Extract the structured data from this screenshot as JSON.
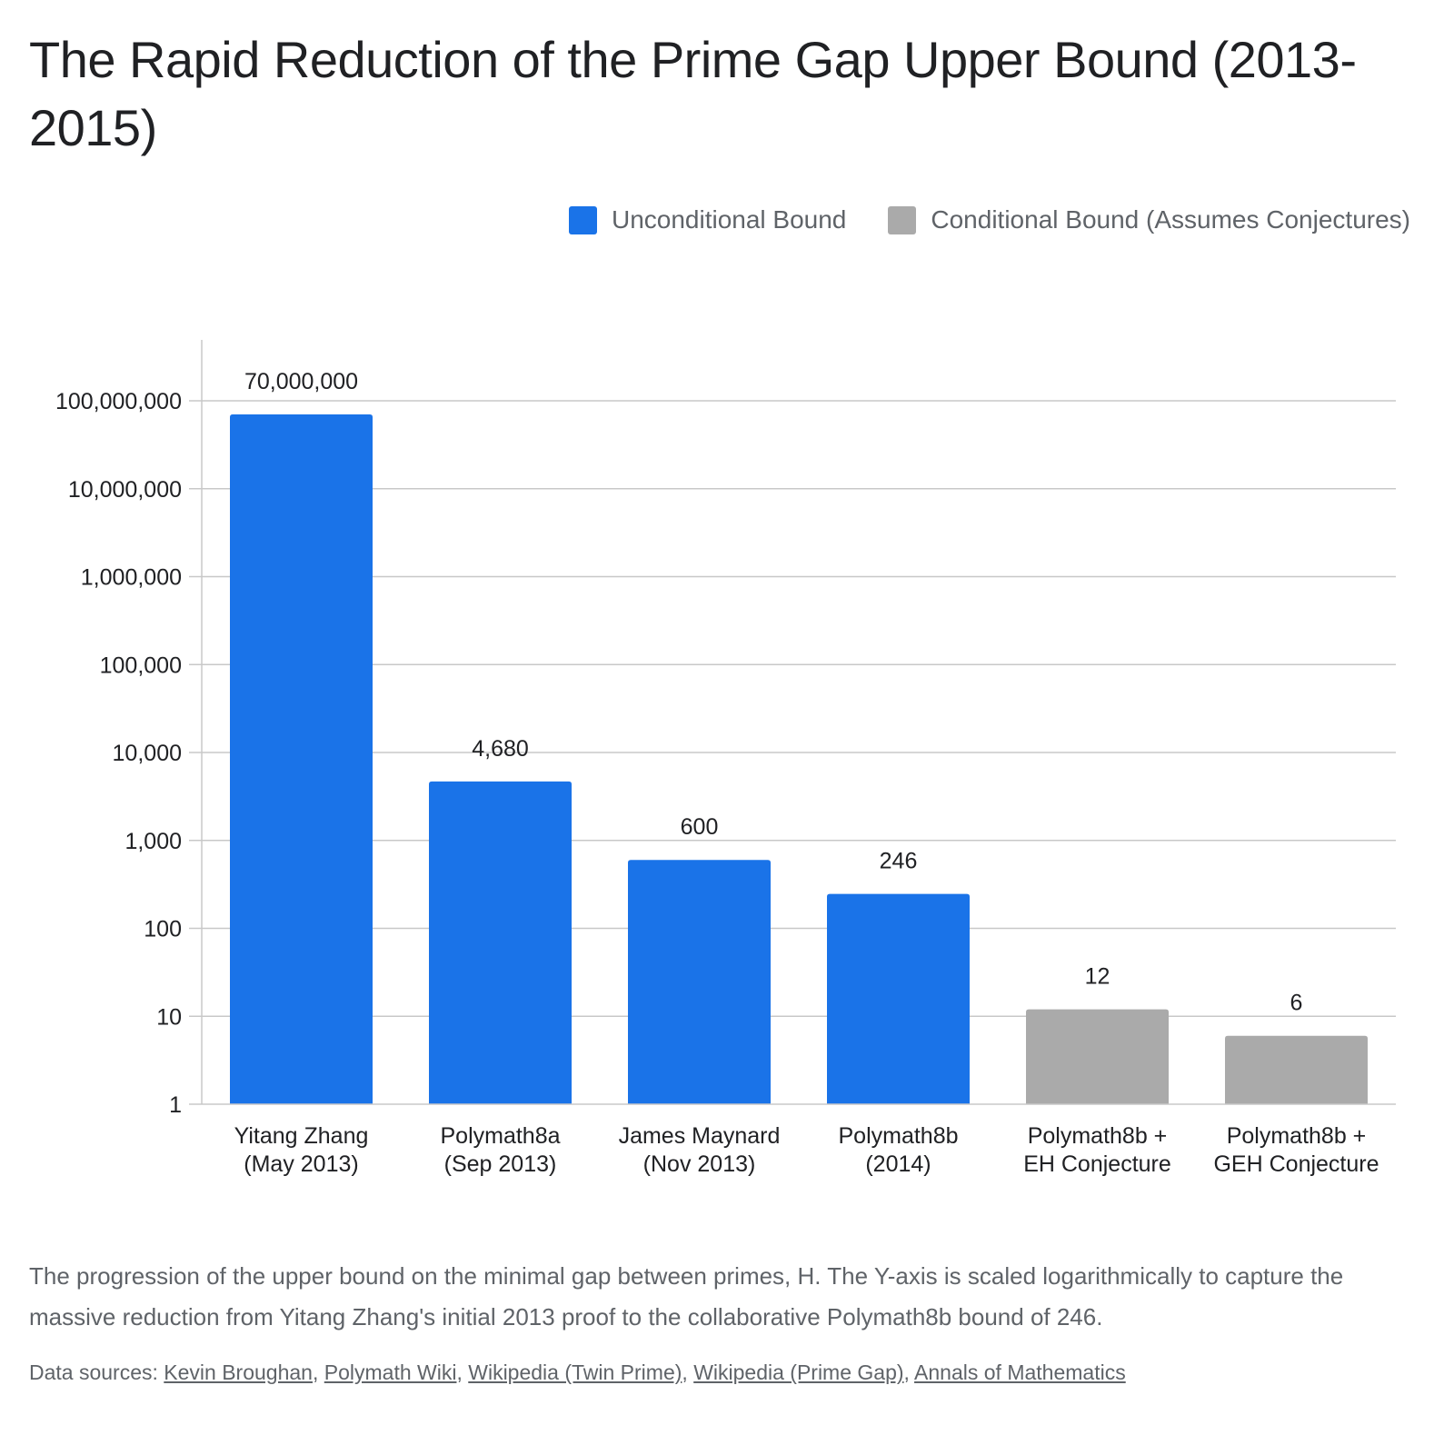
{
  "title": "The Rapid Reduction of the Prime Gap Upper Bound (2013-2015)",
  "legend": [
    {
      "label": "Unconditional Bound",
      "color": "#1a73e8"
    },
    {
      "label": "Conditional Bound (Assumes Conjectures)",
      "color": "#aaaaaa"
    }
  ],
  "chart_data": {
    "type": "bar",
    "title": "The Rapid Reduction of the Prime Gap Upper Bound (2013-2015)",
    "xlabel": "",
    "ylabel": "",
    "yscale": "log",
    "ylim": [
      1,
      100000000
    ],
    "grid": true,
    "legend_position": "top-right",
    "y_ticks": [
      1,
      10,
      100,
      1000,
      10000,
      100000,
      1000000,
      10000000,
      100000000
    ],
    "y_tick_labels": [
      "1",
      "10",
      "100",
      "1,000",
      "10,000",
      "100,000",
      "1,000,000",
      "10,000,000",
      "100,000,000"
    ],
    "categories": [
      [
        "Yitang Zhang",
        "(May 2013)"
      ],
      [
        "Polymath8a",
        "(Sep 2013)"
      ],
      [
        "James Maynard",
        "(Nov 2013)"
      ],
      [
        "Polymath8b",
        "(2014)"
      ],
      [
        "Polymath8b +",
        "EH Conjecture"
      ],
      [
        "Polymath8b +",
        "GEH Conjecture"
      ]
    ],
    "values": [
      70000000,
      4680,
      600,
      246,
      12,
      6
    ],
    "value_labels": [
      "70,000,000",
      "4,680",
      "600",
      "246",
      "12",
      "6"
    ],
    "series_type": [
      "unconditional",
      "unconditional",
      "unconditional",
      "unconditional",
      "conditional",
      "conditional"
    ],
    "colors": {
      "unconditional": "#1a73e8",
      "conditional": "#aaaaaa"
    }
  },
  "caption": "The progression of the upper bound on the minimal gap between primes, H. The Y-axis is scaled logarithmically to capture the massive reduction from Yitang Zhang's initial 2013 proof to the collaborative Polymath8b bound of 246.",
  "sources": {
    "prefix": "Data sources: ",
    "links": [
      "Kevin Broughan",
      "Polymath Wiki",
      "Wikipedia (Twin Prime)",
      "Wikipedia (Prime Gap)",
      "Annals of Mathematics"
    ]
  }
}
